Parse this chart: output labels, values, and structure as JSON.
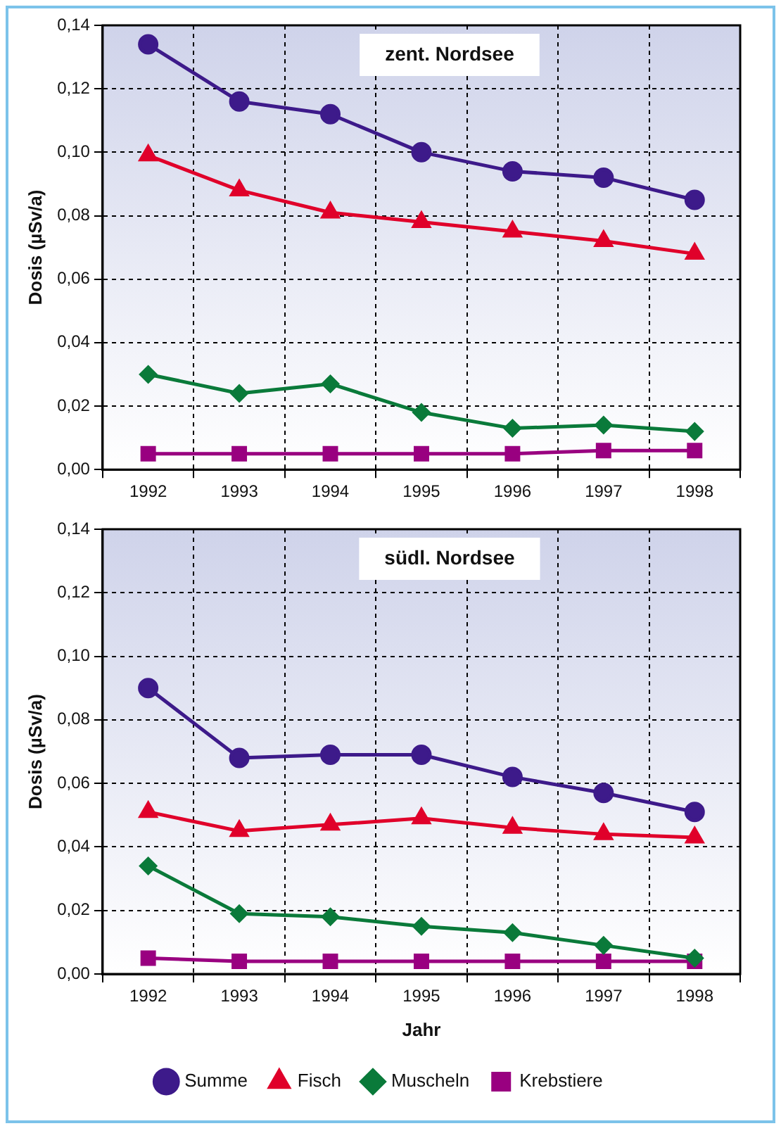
{
  "chart_data": [
    {
      "type": "line",
      "title": "zent. Nordsee",
      "ylabel": "Dosis (µSv/a)",
      "categories": [
        "1992",
        "1993",
        "1994",
        "1995",
        "1996",
        "1997",
        "1998"
      ],
      "ylim": [
        0,
        0.14
      ],
      "yticks": [
        {
          "value": 0,
          "label": "0,00"
        },
        {
          "value": 0.02,
          "label": "0,02"
        },
        {
          "value": 0.04,
          "label": "0,04"
        },
        {
          "value": 0.06,
          "label": "0,06"
        },
        {
          "value": 0.08,
          "label": "0,08"
        },
        {
          "value": 0.1,
          "label": "0,10"
        },
        {
          "value": 0.12,
          "label": "0,12"
        },
        {
          "value": 0.14,
          "label": "0,14"
        }
      ],
      "grid": true,
      "legend": false,
      "line_style": "solid",
      "series": [
        {
          "color": "#3d1a8a",
          "marker": "circle",
          "values": [
            0.134,
            0.116,
            0.112,
            0.1,
            0.094,
            0.092,
            0.085
          ]
        },
        {
          "color": "#e0002a",
          "marker": "triangle",
          "values": [
            0.099,
            0.088,
            0.081,
            0.078,
            0.075,
            0.072,
            0.068
          ]
        },
        {
          "color": "#0a7a3a",
          "marker": "diamond",
          "values": [
            0.03,
            0.024,
            0.027,
            0.018,
            0.013,
            0.014,
            0.012
          ]
        },
        {
          "color": "#990080",
          "marker": "square",
          "values": [
            0.005,
            0.005,
            0.005,
            0.005,
            0.005,
            0.006,
            0.006
          ]
        }
      ]
    },
    {
      "type": "line",
      "title": "südl. Nordsee",
      "xlabel": "Jahr",
      "ylabel": "Dosis (µSv/a)",
      "categories": [
        "1992",
        "1993",
        "1994",
        "1995",
        "1996",
        "1997",
        "1998"
      ],
      "ylim": [
        0,
        0.14
      ],
      "yticks": [
        {
          "value": 0,
          "label": "0,00"
        },
        {
          "value": 0.02,
          "label": "0,02"
        },
        {
          "value": 0.04,
          "label": "0,04"
        },
        {
          "value": 0.06,
          "label": "0,06"
        },
        {
          "value": 0.08,
          "label": "0,08"
        },
        {
          "value": 0.1,
          "label": "0,10"
        },
        {
          "value": 0.12,
          "label": "0,12"
        },
        {
          "value": 0.14,
          "label": "0,14"
        }
      ],
      "grid": true,
      "legend": "bottom",
      "line_style": "solid",
      "series": [
        {
          "name": "Summe",
          "color": "#3d1a8a",
          "marker": "circle",
          "values": [
            0.09,
            0.068,
            0.069,
            0.069,
            0.062,
            0.057,
            0.051
          ]
        },
        {
          "name": "Fisch",
          "color": "#e0002a",
          "marker": "triangle",
          "values": [
            0.051,
            0.045,
            0.047,
            0.049,
            0.046,
            0.044,
            0.043
          ]
        },
        {
          "name": "Muscheln",
          "color": "#0a7a3a",
          "marker": "diamond",
          "values": [
            0.034,
            0.019,
            0.018,
            0.015,
            0.013,
            0.009,
            0.005
          ]
        },
        {
          "name": "Krebstiere",
          "color": "#990080",
          "marker": "square",
          "values": [
            0.005,
            0.004,
            0.004,
            0.004,
            0.004,
            0.004,
            0.004
          ]
        }
      ]
    }
  ]
}
